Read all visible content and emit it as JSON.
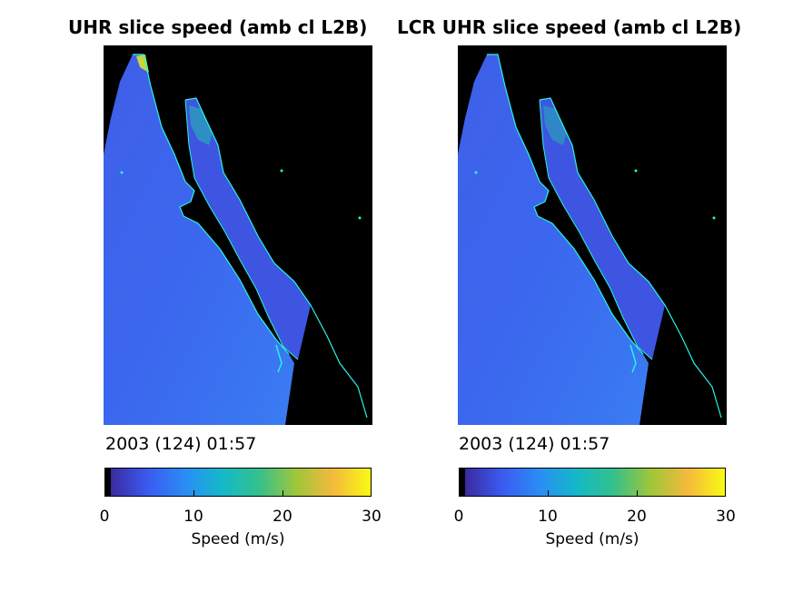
{
  "figure": {
    "left": {
      "title": "UHR slice speed (amb cl L2B)",
      "timestamp": "2003 (124) 01:57"
    },
    "right": {
      "title": "LCR UHR slice speed (amb cl L2B)",
      "timestamp": "2003 (124) 01:57"
    },
    "colorbar": {
      "label": "Speed (m/s)",
      "ticks": [
        "0",
        "10",
        "20",
        "30"
      ],
      "range": [
        0,
        30
      ],
      "colormap": [
        "#000000",
        "#3b2a9e",
        "#3a5bf0",
        "#2b8cf5",
        "#13b9c9",
        "#35c08c",
        "#9fc63a",
        "#f5b93c",
        "#f9fa14"
      ]
    },
    "colors": {
      "ocean_speed": "#3e62e6",
      "coast_line": "#25f5e8",
      "land_mask": "#000000"
    }
  }
}
